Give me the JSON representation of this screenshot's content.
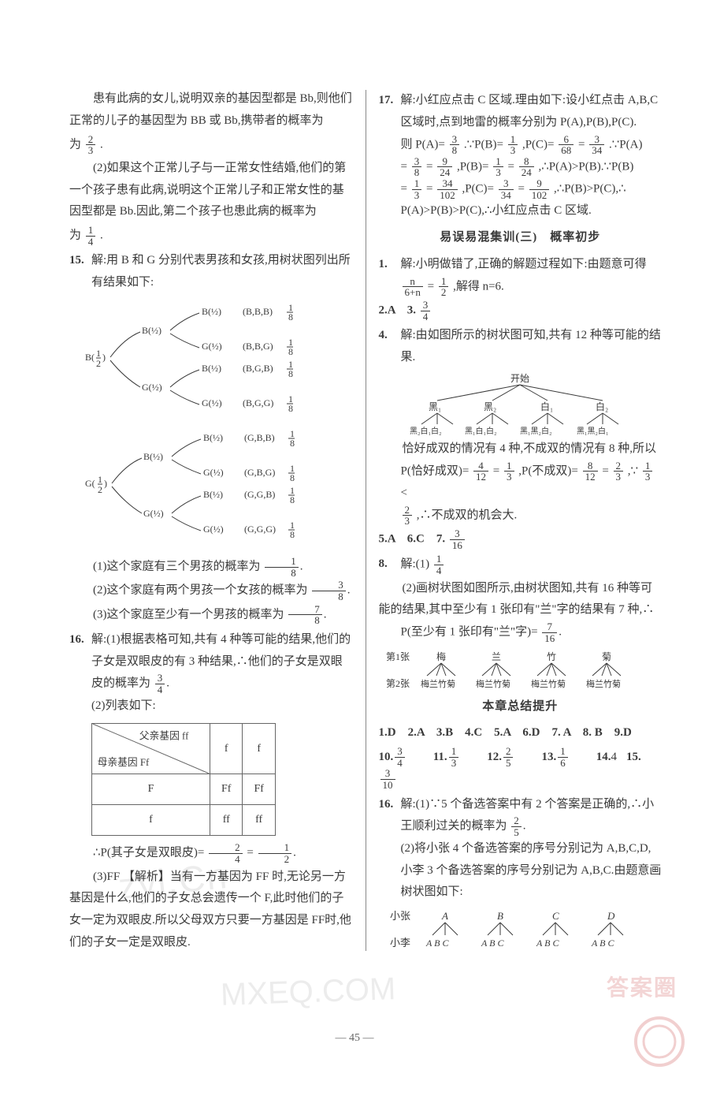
{
  "page_number": "— 45 —",
  "left": {
    "p1": "患有此病的女儿,说明双亲的基因型都是 Bb,则他们正常的儿子的基因型为 BB 或 Bb,携带者的概率为",
    "p1_frac": {
      "num": "2",
      "den": "3"
    },
    "p1_end": ".",
    "p2": "(2)如果这个正常儿子与一正常女性结婚,他们的第一个孩子患有此病,说明这个正常儿子和正常女性的基因型都是 Bb.因此,第二个孩子也患此病的概率为",
    "p2_frac": {
      "num": "1",
      "den": "4"
    },
    "p2_end": ".",
    "q15no": "15.",
    "q15a": "解:用 B 和 G 分别代表男孩和女孩,用树状图列出所有结果如下:",
    "tree_labels": {
      "roots": [
        "B",
        "G"
      ],
      "half": "1/2",
      "outcomes": [
        {
          "t": "(B,B,B)",
          "p": "1/8"
        },
        {
          "t": "(B,B,G)",
          "p": "1/8"
        },
        {
          "t": "(B,G,B)",
          "p": "1/8"
        },
        {
          "t": "(B,G,G)",
          "p": "1/8"
        },
        {
          "t": "(G,B,B)",
          "p": "1/8"
        },
        {
          "t": "(G,B,G)",
          "p": "1/8"
        },
        {
          "t": "(G,G,B)",
          "p": "1/8"
        },
        {
          "t": "(G,G,G)",
          "p": "1/8"
        }
      ]
    },
    "q15s1": "(1)这个家庭有三个男孩的概率为",
    "q15s1_frac": {
      "num": "1",
      "den": "8"
    },
    "q15s2": "(2)这个家庭有两个男孩一个女孩的概率为",
    "q15s2_frac": {
      "num": "3",
      "den": "8"
    },
    "q15s3": "(3)这个家庭至少有一个男孩的概率为",
    "q15s3_frac": {
      "num": "7",
      "den": "8"
    },
    "q16no": "16.",
    "q16a": "解:(1)根据表格可知,共有 4 种等可能的结果,他们的子女是双眼皮的有 3 种结果,∴他们的子女是双眼皮的概率为",
    "q16a_frac": {
      "num": "3",
      "den": "4"
    },
    "q16b": "(2)列表如下:",
    "table": {
      "diag_top": "父亲基因 ff",
      "diag_bottom": "母亲基因 Ff",
      "cols": [
        "f",
        "f"
      ],
      "rows": [
        {
          "h": "F",
          "c": [
            "Ff",
            "Ff"
          ]
        },
        {
          "h": "f",
          "c": [
            "ff",
            "ff"
          ]
        }
      ]
    },
    "q16p": "∴P(其子女是双眼皮)=",
    "q16p_f1": {
      "num": "2",
      "den": "4"
    },
    "q16p_eq": "=",
    "q16p_f2": {
      "num": "1",
      "den": "2"
    },
    "q16c": "(3)FF 【解析】当有一方基因为 FF 时,无论另一方基因是什么,他们的子女总会遗传一个 F,此时他们的子女一定为双眼皮.所以父母双方只要一方基因是 FF时,他们的子女一定是双眼皮."
  },
  "right": {
    "q17no": "17.",
    "q17a": "解:小红应点击 C 区域.理由如下:设小红点击 A,B,C 区域时,点到地雷的概率分别为 P(A),P(B),P(C).",
    "q17b_pre": "则 P(A)=",
    "q17_pa1": {
      "num": "3",
      "den": "8"
    },
    "q17b_mid1": ".∵P(B)=",
    "q17_pb1": {
      "num": "1",
      "den": "3"
    },
    "q17b_mid2": ",P(C)=",
    "q17_pc1a": {
      "num": "6",
      "den": "68"
    },
    "q17b_eq": "=",
    "q17_pc1b": {
      "num": "3",
      "den": "34"
    },
    "q17b_end": ".∵P(A)",
    "q17c_pre": "=",
    "q17_pa2a": {
      "num": "3",
      "den": "8"
    },
    "q17c_eq1": "=",
    "q17_pa2b": {
      "num": "9",
      "den": "24"
    },
    "q17c_mid1": ",P(B)=",
    "q17_pb2a": {
      "num": "1",
      "den": "3"
    },
    "q17c_eq2": "=",
    "q17_pb2b": {
      "num": "8",
      "den": "24"
    },
    "q17c_mid2": ",∴P(A)>P(B).∵P(B)",
    "q17d_pre": "=",
    "q17_pb3a": {
      "num": "1",
      "den": "3"
    },
    "q17d_eq1": "=",
    "q17_pb3b": {
      "num": "34",
      "den": "102"
    },
    "q17d_mid1": ",P(C)=",
    "q17_pc2a": {
      "num": "3",
      "den": "34"
    },
    "q17d_eq2": "=",
    "q17_pc2b": {
      "num": "9",
      "den": "102"
    },
    "q17d_mid2": ",∴P(B)>P(C),∴",
    "q17e": "P(A)>P(B)>P(C),∴小红应点击 C 区域.",
    "title1": "易误易混集训(三)　概率初步",
    "r1no": "1.",
    "r1a": "解:小明做错了,正确的解题过程如下:由题意可得",
    "r1b_pre": "",
    "r1_f": {
      "num": "n",
      "den": "6+n"
    },
    "r1b_mid": "=",
    "r1_f2": {
      "num": "1",
      "den": "2"
    },
    "r1b_end": ",解得 n=6.",
    "r2_3": "2.A　3.",
    "r3_frac": {
      "num": "3",
      "den": "4"
    },
    "r4no": "4.",
    "r4a": "解:由如图所示的树状图可知,共有 12 种等可能的结果.",
    "r4_tree": {
      "start": "开始",
      "top": [
        "黑₁",
        "黑₂",
        "白₁",
        "白₂"
      ],
      "bottom": [
        "黑₂白₁白₂",
        "黑₁白₁白₂",
        "黑₁黑₂白₂",
        "黑₁黑₂白₁"
      ]
    },
    "r4b": "恰好成双的情况有 4 种,不成双的情况有 8 种,所以",
    "r4c_pre": "P(恰好成双)=",
    "r4c_f1": {
      "num": "4",
      "den": "12"
    },
    "r4c_eq1": "=",
    "r4c_f2": {
      "num": "1",
      "den": "3"
    },
    "r4c_mid": ",P(不成双)=",
    "r4c_f3": {
      "num": "8",
      "den": "12"
    },
    "r4c_eq2": "=",
    "r4c_f4": {
      "num": "2",
      "den": "3"
    },
    "r4c_mid2": ",∵",
    "r4c_f5": {
      "num": "1",
      "den": "3"
    },
    "r4c_lt": "<",
    "r4d_f": {
      "num": "2",
      "den": "3"
    },
    "r4d_end": ",∴不成双的机会大.",
    "r5_7_pre": "5.A　6.C　7.",
    "r7_frac": {
      "num": "3",
      "den": "16"
    },
    "r8no": "8.",
    "r8a": "解:(1)",
    "r8a_frac": {
      "num": "1",
      "den": "4"
    },
    "r8b": "(2)画树状图如图所示,由树状图知,共有 16 种等可能的结果,其中至少有 1 张印有\"兰\"字的结果有 7 种,∴",
    "r8c_pre": "P(至少有 1 张印有\"兰\"字)=",
    "r8c_frac": {
      "num": "7",
      "den": "16"
    },
    "r8_tree": {
      "row1_label": "第1张",
      "row2_label": "第2张",
      "top": [
        "梅",
        "兰",
        "竹",
        "菊"
      ],
      "bottom": "梅兰竹菊"
    },
    "title2": "本章总结提升",
    "ans_row1": "1.D　2.A　3.B　4.C　5.A　6.D　7. A　8. B　9.D",
    "ans_row2_items": [
      {
        "no": "10.",
        "frac": {
          "num": "3",
          "den": "4"
        }
      },
      {
        "no": "11.",
        "frac": {
          "num": "1",
          "den": "3"
        }
      },
      {
        "no": "12.",
        "frac": {
          "num": "2",
          "den": "5"
        }
      },
      {
        "no": "13.",
        "frac": {
          "num": "1",
          "den": "6"
        }
      },
      {
        "no": "14.",
        "text": "4"
      },
      {
        "no": "15.",
        "frac": {
          "num": "3",
          "den": "10"
        }
      }
    ],
    "r16no": "16.",
    "r16a": "解:(1)∵5 个备选答案中有 2 个答案是正确的,∴小王顺利过关的概率为",
    "r16a_frac": {
      "num": "2",
      "den": "5"
    },
    "r16b": "(2)将小张 4 个备选答案的序号分别记为 A,B,C,D,小李 3 个备选答案的序号分别记为 A,B,C.由题意画树状图如下:",
    "r16_tree": {
      "row1_label": "小张",
      "row2_label": "小李",
      "top": [
        "A",
        "B",
        "C",
        "D"
      ],
      "bottom": "A B C"
    }
  }
}
